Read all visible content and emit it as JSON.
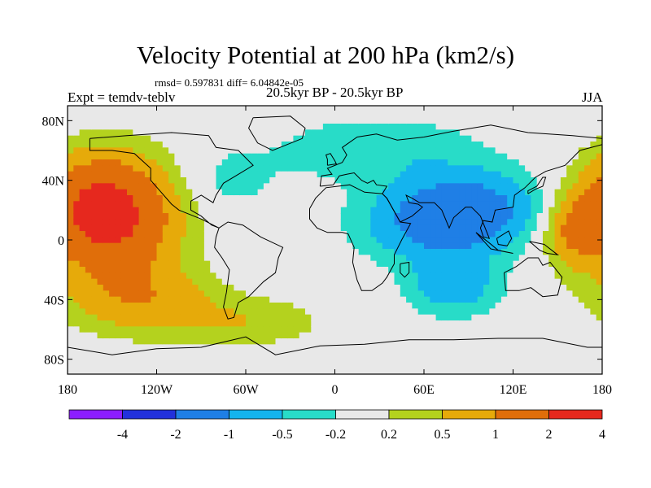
{
  "chart_data": {
    "type": "heatmap",
    "title": "Velocity Potential at 200 hPa (km2/s)",
    "stats_text": "rmsd= 0.597831  diff= 6.04842e-05",
    "left_label": "Expt = temdv-teblv",
    "center_label": "20.5kyr BP - 20.5kyr BP",
    "right_label": "JJA",
    "x_axis": {
      "ticks": [
        -180,
        -120,
        -60,
        0,
        60,
        120,
        180
      ],
      "labels": [
        "180",
        "120W",
        "60W",
        "0",
        "60E",
        "120E",
        "180"
      ],
      "range": [
        -180,
        180
      ]
    },
    "y_axis": {
      "ticks": [
        80,
        40,
        0,
        -40,
        -80
      ],
      "labels": [
        "80N",
        "40N",
        "0",
        "40S",
        "80S"
      ],
      "range": [
        -90,
        90
      ]
    },
    "colorbar": {
      "labels": [
        "-4",
        "-2",
        "-1",
        "-0.5",
        "-0.2",
        "0.2",
        "0.5",
        "1",
        "2",
        "4"
      ],
      "colors": [
        "#8c1eff",
        "#2231dc",
        "#1f7fe6",
        "#14b4ee",
        "#28dcc8",
        "#e8e8e8",
        "#b4d21e",
        "#e6aa0a",
        "#e06e0a",
        "#e6281e"
      ]
    },
    "field_centers": [
      {
        "lon": -148,
        "lat": 14,
        "value": 2.0,
        "lon_scale": 40,
        "lat_scale": 38
      },
      {
        "lon": -165,
        "lat": 25,
        "value": 0.9,
        "lon_scale": 30,
        "lat_scale": 30
      },
      {
        "lon": -130,
        "lat": -40,
        "value": 0.8,
        "lon_scale": 48,
        "lat_scale": 22
      },
      {
        "lon": -60,
        "lat": -55,
        "value": 0.45,
        "lon_scale": 50,
        "lat_scale": 16
      },
      {
        "lon": 160,
        "lat": 5,
        "value": 0.9,
        "lon_scale": 18,
        "lat_scale": 22
      },
      {
        "lon": 90,
        "lat": 20,
        "value": -1.4,
        "lon_scale": 42,
        "lat_scale": 24
      },
      {
        "lon": 60,
        "lat": 10,
        "value": -0.8,
        "lon_scale": 46,
        "lat_scale": 24
      },
      {
        "lon": 80,
        "lat": -30,
        "value": -0.8,
        "lon_scale": 30,
        "lat_scale": 20
      },
      {
        "lon": 30,
        "lat": 60,
        "value": -0.45,
        "lon_scale": 70,
        "lat_scale": 22
      },
      {
        "lon": -70,
        "lat": 40,
        "value": -0.3,
        "lon_scale": 30,
        "lat_scale": 20
      },
      {
        "lon": -10,
        "lat": -15,
        "value": 0.05,
        "lon_scale": 30,
        "lat_scale": 25
      }
    ]
  }
}
